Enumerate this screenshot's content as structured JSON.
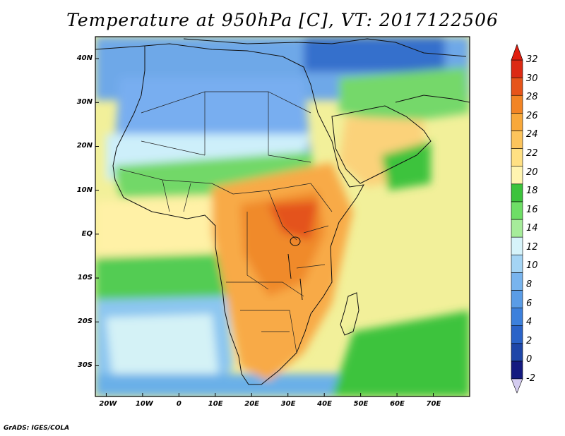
{
  "title": "Temperature at 950hPa [C], VT: 2017122506",
  "footer": "GrADS: IGES/COLA",
  "map": {
    "lon_range": [
      -23,
      80
    ],
    "lat_range": [
      -37,
      45
    ],
    "lon_ticks": [
      {
        "value": -20,
        "label": "20W"
      },
      {
        "value": -10,
        "label": "10W"
      },
      {
        "value": 0,
        "label": "0"
      },
      {
        "value": 10,
        "label": "10E"
      },
      {
        "value": 20,
        "label": "20E"
      },
      {
        "value": 30,
        "label": "30E"
      },
      {
        "value": 40,
        "label": "40E"
      },
      {
        "value": 50,
        "label": "50E"
      },
      {
        "value": 60,
        "label": "60E"
      },
      {
        "value": 70,
        "label": "70E"
      }
    ],
    "lat_ticks": [
      {
        "value": 40,
        "label": "40N"
      },
      {
        "value": 30,
        "label": "30N"
      },
      {
        "value": 20,
        "label": "20N"
      },
      {
        "value": 10,
        "label": "10N"
      },
      {
        "value": 0,
        "label": "EQ"
      },
      {
        "value": -10,
        "label": "10S"
      },
      {
        "value": -20,
        "label": "20S"
      },
      {
        "value": -30,
        "label": "30S"
      }
    ]
  },
  "colorbar": {
    "labels": [
      "-2",
      "0",
      "2",
      "4",
      "6",
      "8",
      "10",
      "12",
      "14",
      "16",
      "18",
      "20",
      "22",
      "24",
      "26",
      "28",
      "30",
      "32"
    ],
    "colors": [
      "#141a80",
      "#1e46a8",
      "#2a63c8",
      "#3c80dc",
      "#5a9ce6",
      "#78b4ee",
      "#a4d4f4",
      "#d6f3fa",
      "#a6ec9a",
      "#6ede66",
      "#3cc33c",
      "#fff4b0",
      "#ffe083",
      "#fcc45c",
      "#f8a83a",
      "#f28424",
      "#e6541a",
      "#dc2a14"
    ],
    "under_color": "#d4ccf0",
    "over_color": "#e01e10"
  }
}
